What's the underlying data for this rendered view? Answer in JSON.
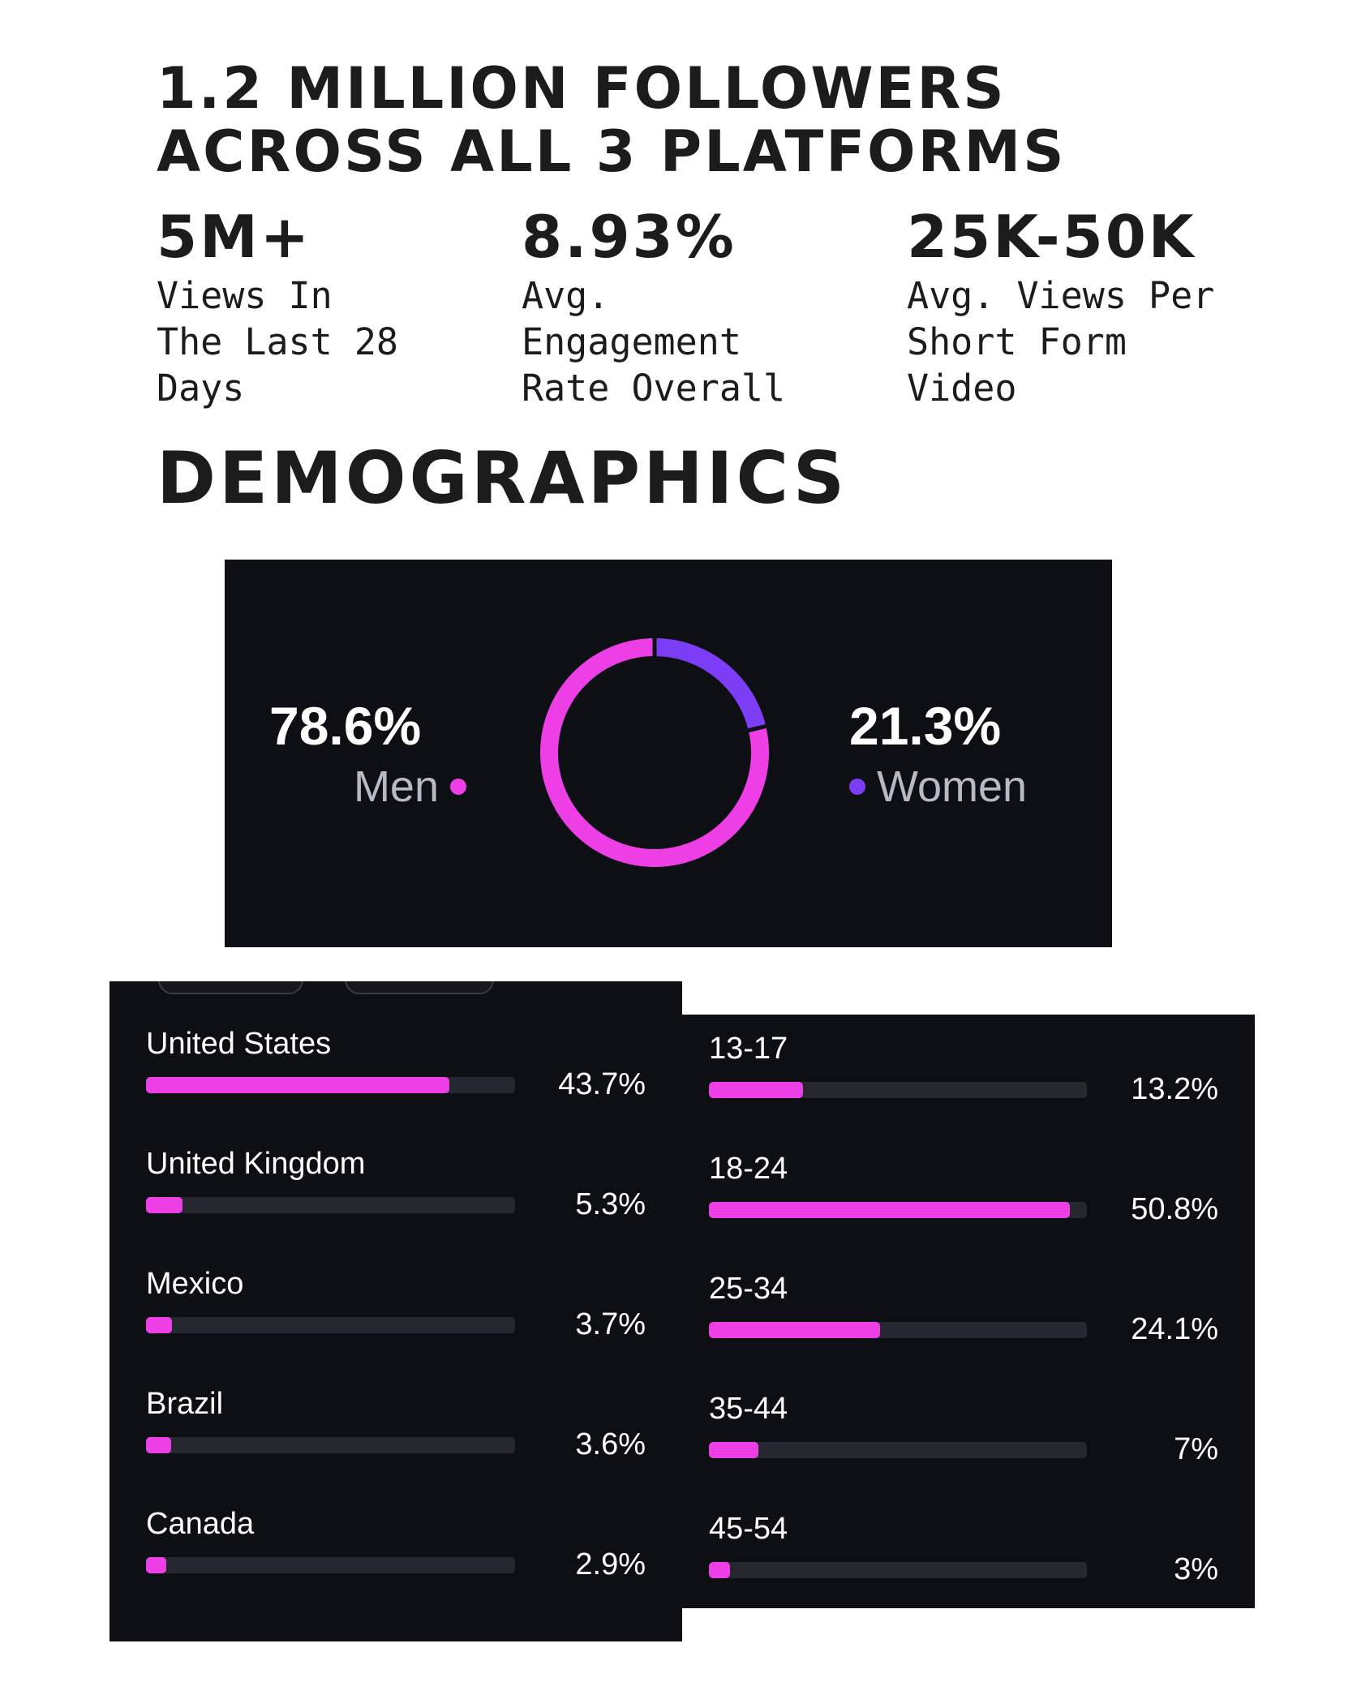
{
  "headline": {
    "line1": "1.2 MILLION FOLLOWERS",
    "line2": "ACROSS ALL 3 PLATFORMS"
  },
  "stats": [
    {
      "value": "5M+",
      "desc": "Views In\nThe Last 28\nDays"
    },
    {
      "value": "8.93%",
      "desc": "Avg.\nEngagement\nRate Overall"
    },
    {
      "value": "25K-50K",
      "desc": "Avg. Views Per\nShort Form\nVideo"
    }
  ],
  "section_title": "DEMOGRAPHICS",
  "colors": {
    "panel_bg": "#0d0f14",
    "men": "#ee3fe6",
    "women": "#7b3df5",
    "track": "#262830"
  },
  "gender": {
    "men": {
      "value": "78.6%",
      "label": "Men",
      "fraction": 0.786
    },
    "women": {
      "value": "21.3%",
      "label": "Women",
      "fraction": 0.213
    }
  },
  "countries": [
    {
      "label": "United States",
      "pct": "43.7%",
      "value": 43.7
    },
    {
      "label": "United Kingdom",
      "pct": "5.3%",
      "value": 5.3
    },
    {
      "label": "Mexico",
      "pct": "3.7%",
      "value": 3.7
    },
    {
      "label": "Brazil",
      "pct": "3.6%",
      "value": 3.6
    },
    {
      "label": "Canada",
      "pct": "2.9%",
      "value": 2.9
    }
  ],
  "ages": [
    {
      "label": "13-17",
      "pct": "13.2%",
      "value": 13.2
    },
    {
      "label": "18-24",
      "pct": "50.8%",
      "value": 50.8
    },
    {
      "label": "25-34",
      "pct": "24.1%",
      "value": 24.1
    },
    {
      "label": "35-44",
      "pct": "7%",
      "value": 7
    },
    {
      "label": "45-54",
      "pct": "3%",
      "value": 3
    }
  ]
}
